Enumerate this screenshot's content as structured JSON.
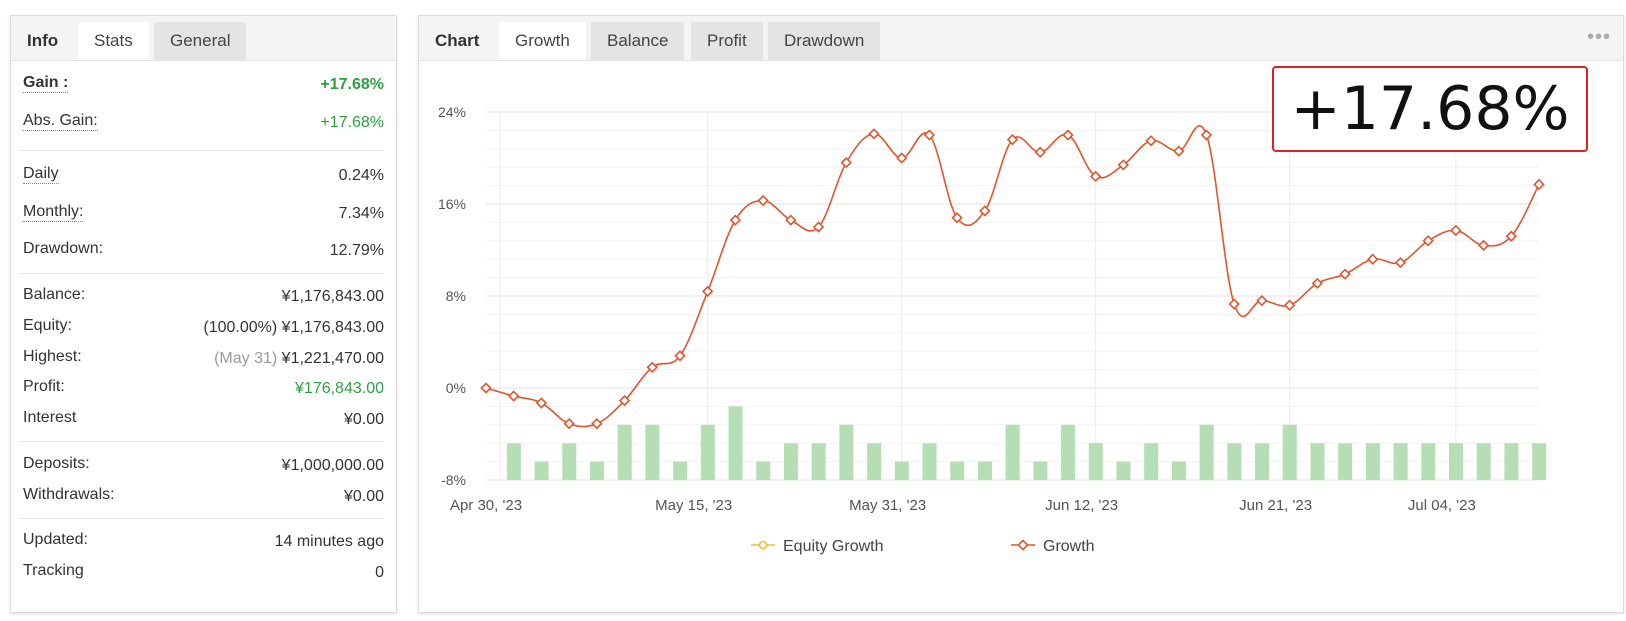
{
  "left_tabs": [
    {
      "label": "Info",
      "style": "plain"
    },
    {
      "label": "Stats",
      "style": "active"
    },
    {
      "label": "General",
      "style": "inactive"
    }
  ],
  "stats": {
    "gain": {
      "label": "Gain :",
      "value": "+17.68%"
    },
    "abs_gain": {
      "label": "Abs. Gain:",
      "value": "+17.68%"
    },
    "daily": {
      "label": "Daily",
      "value": "0.24%"
    },
    "monthly": {
      "label": "Monthly:",
      "value": "7.34%"
    },
    "drawdown": {
      "label": "Drawdown:",
      "value": "12.79%"
    },
    "balance": {
      "label": "Balance:",
      "value": "¥1,176,843.00"
    },
    "equity": {
      "label": "Equity:",
      "prefix": "(100.00%)",
      "value": "¥1,176,843.00"
    },
    "highest": {
      "label": "Highest:",
      "prefix": "(May 31)",
      "value": "¥1,221,470.00"
    },
    "profit": {
      "label": "Profit:",
      "value": "¥176,843.00"
    },
    "interest": {
      "label": "Interest",
      "value": "¥0.00"
    },
    "deposits": {
      "label": "Deposits:",
      "value": "¥1,000,000.00"
    },
    "withdrawals": {
      "label": "Withdrawals:",
      "value": "¥0.00"
    },
    "updated": {
      "label": "Updated:",
      "value": "14 minutes ago"
    },
    "tracking": {
      "label": "Tracking",
      "value": "0"
    }
  },
  "right_tabs": [
    {
      "label": "Chart",
      "style": "plain"
    },
    {
      "label": "Growth",
      "style": "active"
    },
    {
      "label": "Balance",
      "style": "inactive"
    },
    {
      "label": "Profit",
      "style": "inactive"
    },
    {
      "label": "Drawdown",
      "style": "inactive"
    }
  ],
  "more_icon": "•••",
  "callout_text": "+17.68%",
  "colors": {
    "line": "#e0552c",
    "bar": "#b5deb5",
    "green": "#2ea043",
    "callout_border": "#e02020",
    "equity": "#f0c030"
  },
  "chart_data": {
    "type": "line",
    "title": "",
    "xlabel": "",
    "ylabel": "",
    "ylim": [
      -8,
      24
    ],
    "y_ticks": [
      "24%",
      "16%",
      "8%",
      "0%",
      "-8%"
    ],
    "y_tick_values": [
      24,
      16,
      8,
      0,
      -8
    ],
    "x_tick_labels": [
      "Apr 30, '23",
      "May 15, '23",
      "May 31, '23",
      "Jun 12, '23",
      "Jun 21, '23",
      "Jul 04, '23"
    ],
    "legend": [
      "Equity Growth",
      "Growth"
    ],
    "legend_position": "bottom",
    "grid": true,
    "series": [
      {
        "name": "Growth",
        "values": [
          0.0,
          -0.7,
          -1.3,
          -3.1,
          -3.1,
          -1.1,
          1.8,
          2.8,
          8.4,
          14.6,
          16.3,
          14.6,
          14.0,
          19.6,
          22.1,
          20.0,
          22.0,
          14.8,
          15.4,
          21.6,
          20.5,
          22.0,
          18.4,
          19.4,
          21.5,
          20.6,
          22.0,
          7.3,
          7.6,
          7.2,
          9.1,
          9.9,
          11.2,
          10.9,
          12.8,
          13.7,
          12.4,
          13.2,
          17.7
        ]
      }
    ],
    "bars": {
      "name": "",
      "values": [
        -4.8,
        -6.4,
        -4.8,
        -6.4,
        -3.2,
        -3.2,
        -6.4,
        -3.2,
        -1.6,
        -6.4,
        -4.8,
        -4.8,
        -3.2,
        -4.8,
        -6.4,
        -4.8,
        -6.4,
        -6.4,
        -3.2,
        -6.4,
        -3.2,
        -4.8,
        -6.4,
        -4.8,
        -6.4,
        -3.2,
        -4.8,
        -4.8,
        -3.2,
        -4.8,
        -4.8,
        -4.8,
        -4.8,
        -4.8,
        -4.8,
        -4.8,
        -4.8,
        -4.8
      ]
    }
  }
}
